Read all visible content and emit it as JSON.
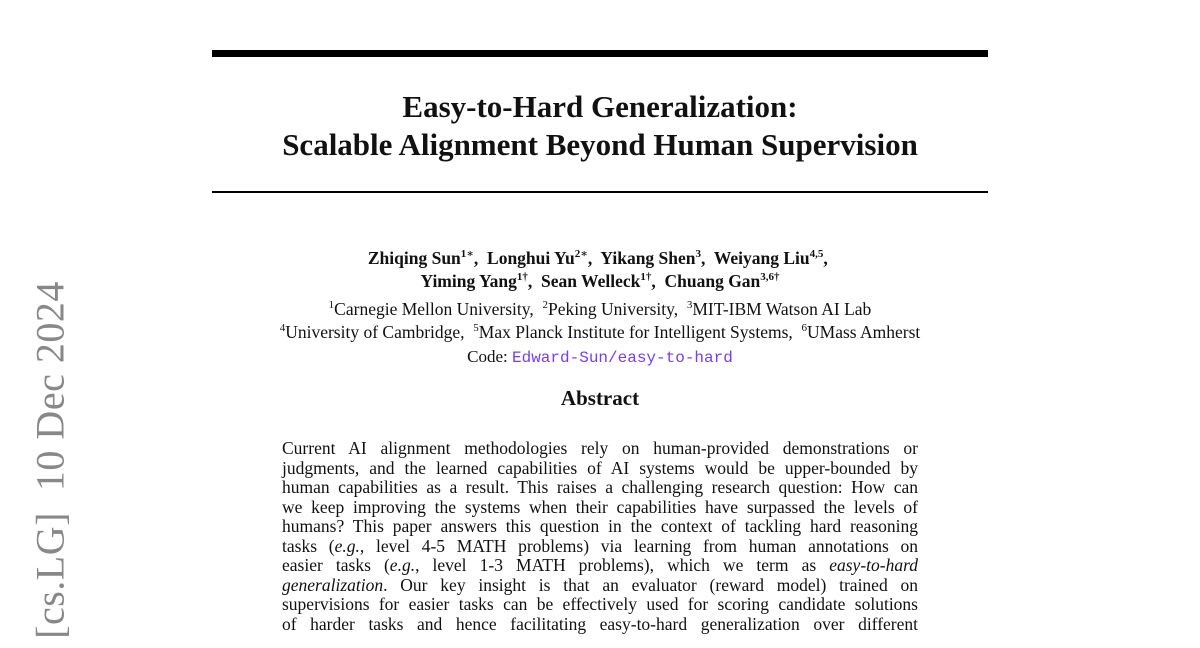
{
  "sidebar_stamp": {
    "category": "[cs.LG]",
    "date": "10 Dec 2024"
  },
  "title": {
    "line1": "Easy-to-Hard Generalization:",
    "line2": "Scalable Alignment Beyond Human Supervision"
  },
  "authors": {
    "line1": [
      {
        "name": "Zhiqing Sun",
        "sup": "1∗"
      },
      {
        "name": "Longhui Yu",
        "sup": "2∗"
      },
      {
        "name": "Yikang Shen",
        "sup": "3"
      },
      {
        "name": "Weiyang Liu",
        "sup": "4,5"
      }
    ],
    "line2": [
      {
        "name": "Yiming Yang",
        "sup": "1†"
      },
      {
        "name": "Sean Welleck",
        "sup": "1†"
      },
      {
        "name": "Chuang Gan",
        "sup": "3,6†"
      }
    ]
  },
  "affiliations": {
    "line1": [
      {
        "sup": "1",
        "name": "Carnegie Mellon University"
      },
      {
        "sup": "2",
        "name": "Peking University"
      },
      {
        "sup": "3",
        "name": "MIT-IBM Watson AI Lab"
      }
    ],
    "line2": [
      {
        "sup": "4",
        "name": "University of Cambridge"
      },
      {
        "sup": "5",
        "name": "Max Planck Institute for Intelligent Systems"
      },
      {
        "sup": "6",
        "name": "UMass Amherst"
      }
    ]
  },
  "code": {
    "label": "Code:",
    "link": "Edward-Sun/easy-to-hard",
    "link_color": "#7a3cf0"
  },
  "abstract": {
    "heading": "Abstract",
    "lines": [
      [
        {
          "t": "Current AI alignment methodologies rely on human-provided demonstrations or"
        }
      ],
      [
        {
          "t": "judgments, and the learned capabilities of AI systems would be upper-bounded by"
        }
      ],
      [
        {
          "t": "human capabilities as a result. This raises a challenging research question: How can"
        }
      ],
      [
        {
          "t": "we keep improving the systems when their capabilities have surpassed the levels of"
        }
      ],
      [
        {
          "t": "humans? This paper answers this question in the context of tackling hard reasoning"
        }
      ],
      [
        {
          "t": "tasks ("
        },
        {
          "t": "e.g.",
          "i": true
        },
        {
          "t": ", level 4-5 MATH problems) via learning from human annotations on"
        }
      ],
      [
        {
          "t": "easier tasks ("
        },
        {
          "t": "e.g.",
          "i": true
        },
        {
          "t": ", level 1-3 MATH problems), which we term as "
        },
        {
          "t": "easy-to-hard",
          "i": true
        }
      ],
      [
        {
          "t": "generalization",
          "i": true
        },
        {
          "t": ".  Our key insight is that an evaluator (reward model) trained on"
        }
      ],
      [
        {
          "t": "supervisions for easier tasks can be effectively used for scoring candidate solutions"
        }
      ],
      [
        {
          "t": "of harder tasks and hence facilitating easy-to-hard generalization over different"
        }
      ]
    ]
  }
}
